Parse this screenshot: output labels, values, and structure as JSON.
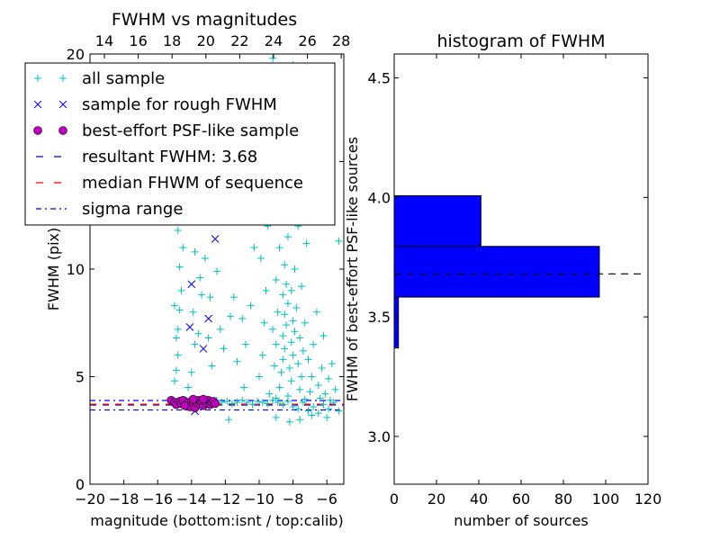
{
  "chart_data": [
    {
      "type": "scatter",
      "title": "FWHM vs magnitudes",
      "xlabel": "magnitude (bottom:isnt / top:calib)",
      "ylabel": "FWHM (pix)",
      "xlim": [
        -20,
        -5
      ],
      "ylim": [
        0,
        20
      ],
      "xticks": [
        -20,
        -18,
        -16,
        -14,
        -12,
        -10,
        -8,
        -6
      ],
      "xtick_labels": [
        "−20",
        "−18",
        "−16",
        "−14",
        "−12",
        "−10",
        "−8",
        "−6"
      ],
      "yticks": [
        0,
        5,
        10,
        15,
        20
      ],
      "ytick_labels": [
        "0",
        "5",
        "10",
        "15",
        "20"
      ],
      "top_axis": {
        "offset": 33.15,
        "ticks": [
          14,
          16,
          18,
          20,
          22,
          24,
          26,
          28
        ],
        "tick_labels": [
          "14",
          "16",
          "18",
          "20",
          "22",
          "24",
          "26",
          "28"
        ]
      },
      "legend": {
        "placement": "upper-left",
        "entries": [
          {
            "label": "all sample",
            "marker": "plus",
            "color": "#00bfbf"
          },
          {
            "label": "sample for rough FWHM",
            "marker": "x",
            "color": "#0000ff"
          },
          {
            "label": "best-effort PSF-like sample",
            "marker": "circle",
            "color": "#bf00bf"
          },
          {
            "label": "resultant FWHM: 3.68",
            "line": "dashed",
            "color": "#0000ff"
          },
          {
            "label": "median FHWM of sequence",
            "line": "dashed",
            "color": "#ff0000"
          },
          {
            "label": "sigma range",
            "line": "dashdot",
            "color": "#0000ff"
          }
        ]
      },
      "hlines": [
        {
          "name": "resultant",
          "y": 3.68,
          "color": "#0000ff",
          "style": "dashed"
        },
        {
          "name": "median",
          "y": 3.72,
          "color": "#ff0000",
          "style": "dashed"
        },
        {
          "name": "sigma-upper",
          "y": 3.89,
          "color": "#0000ff",
          "style": "dashdot"
        },
        {
          "name": "sigma-lower",
          "y": 3.45,
          "color": "#0000ff",
          "style": "dashdot"
        }
      ],
      "series": [
        {
          "name": "all sample",
          "color": "#00bfbf",
          "marker": "plus",
          "points": [
            [
              -15.2,
              3.8
            ],
            [
              -14.9,
              3.85
            ],
            [
              -14.6,
              3.75
            ],
            [
              -14.3,
              3.9
            ],
            [
              -14.0,
              3.8
            ],
            [
              -13.7,
              3.7
            ],
            [
              -13.4,
              3.85
            ],
            [
              -13.1,
              3.8
            ],
            [
              -12.8,
              3.75
            ],
            [
              -12.5,
              3.9
            ],
            [
              -12.2,
              3.8
            ],
            [
              -11.9,
              3.85
            ],
            [
              -11.6,
              3.75
            ],
            [
              -11.3,
              3.8
            ],
            [
              -11.0,
              3.9
            ],
            [
              -10.7,
              3.8
            ],
            [
              -10.4,
              3.7
            ],
            [
              -10.1,
              3.85
            ],
            [
              -9.8,
              3.8
            ],
            [
              -9.5,
              3.75
            ],
            [
              -9.2,
              3.9
            ],
            [
              -8.9,
              3.8
            ],
            [
              -8.6,
              3.7
            ],
            [
              -8.3,
              3.85
            ],
            [
              -8.0,
              3.6
            ],
            [
              -7.7,
              3.5
            ],
            [
              -7.4,
              3.8
            ],
            [
              -7.1,
              3.4
            ],
            [
              -6.8,
              3.6
            ],
            [
              -6.5,
              3.3
            ],
            [
              -6.2,
              3.7
            ],
            [
              -5.9,
              3.5
            ],
            [
              -5.6,
              3.8
            ],
            [
              -5.3,
              3.4
            ],
            [
              -11.8,
              3.0
            ],
            [
              -9.0,
              3.1
            ],
            [
              -7.6,
              3.0
            ],
            [
              -8.2,
              2.9
            ],
            [
              -6.9,
              3.2
            ],
            [
              -6.0,
              3.1
            ],
            [
              -15.0,
              4.8
            ],
            [
              -14.9,
              5.3
            ],
            [
              -14.8,
              6.0
            ],
            [
              -14.9,
              6.8
            ],
            [
              -14.8,
              7.2
            ],
            [
              -14.7,
              8.1
            ],
            [
              -15.0,
              8.3
            ],
            [
              -14.6,
              9.0
            ],
            [
              -14.7,
              10.1
            ],
            [
              -14.5,
              11.0
            ],
            [
              -14.8,
              11.8
            ],
            [
              -14.6,
              12.6
            ],
            [
              -14.8,
              14.0
            ],
            [
              -14.7,
              15.5
            ],
            [
              -14.5,
              17.0
            ],
            [
              -14.8,
              19.3
            ],
            [
              -14.2,
              4.5
            ],
            [
              -14.0,
              5.2
            ],
            [
              -13.8,
              6.5
            ],
            [
              -13.6,
              7.0
            ],
            [
              -13.9,
              8.0
            ],
            [
              -13.4,
              8.8
            ],
            [
              -13.5,
              9.6
            ],
            [
              -13.2,
              10.5
            ],
            [
              -13.8,
              10.8
            ],
            [
              -13.4,
              12.4
            ],
            [
              -12.9,
              8.7
            ],
            [
              -13.0,
              6.8
            ],
            [
              -12.8,
              5.5
            ],
            [
              -12.5,
              9.9
            ],
            [
              -12.3,
              7.2
            ],
            [
              -12.1,
              6.3
            ],
            [
              -11.7,
              7.8
            ],
            [
              -11.5,
              8.7
            ],
            [
              -11.3,
              5.7
            ],
            [
              -11.0,
              7.7
            ],
            [
              -10.8,
              6.5
            ],
            [
              -10.5,
              8.3
            ],
            [
              -10.3,
              11.0
            ],
            [
              -10.9,
              4.5
            ],
            [
              -10.0,
              5.0
            ],
            [
              -9.8,
              6.0
            ],
            [
              -9.7,
              7.5
            ],
            [
              -9.6,
              9.0
            ],
            [
              -9.9,
              10.5
            ],
            [
              -9.5,
              12.0
            ],
            [
              -9.8,
              13.5
            ],
            [
              -9.4,
              15.0
            ],
            [
              -9.6,
              16.8
            ],
            [
              -9.3,
              18.5
            ],
            [
              -9.2,
              19.8
            ],
            [
              -9.1,
              5.5
            ],
            [
              -9.0,
              6.5
            ],
            [
              -9.2,
              7.2
            ],
            [
              -8.9,
              8.0
            ],
            [
              -9.0,
              9.5
            ],
            [
              -8.8,
              11.0
            ],
            [
              -9.1,
              12.8
            ],
            [
              -8.7,
              14.2
            ],
            [
              -8.9,
              17.0
            ],
            [
              -8.8,
              4.5
            ],
            [
              -8.7,
              5.2
            ],
            [
              -8.6,
              5.8
            ],
            [
              -8.5,
              6.3
            ],
            [
              -8.6,
              6.9
            ],
            [
              -8.4,
              7.4
            ],
            [
              -8.5,
              7.9
            ],
            [
              -8.3,
              8.4
            ],
            [
              -8.6,
              8.8
            ],
            [
              -8.4,
              9.3
            ],
            [
              -8.5,
              10.2
            ],
            [
              -8.3,
              11.5
            ],
            [
              -8.6,
              13.0
            ],
            [
              -8.4,
              15.5
            ],
            [
              -8.2,
              18.0
            ],
            [
              -8.1,
              4.8
            ],
            [
              -8.2,
              5.4
            ],
            [
              -8.0,
              6.0
            ],
            [
              -8.1,
              6.6
            ],
            [
              -7.9,
              7.1
            ],
            [
              -8.0,
              7.6
            ],
            [
              -7.8,
              8.2
            ],
            [
              -8.1,
              9.0
            ],
            [
              -7.9,
              10.0
            ],
            [
              -7.7,
              12.0
            ],
            [
              -7.6,
              4.4
            ],
            [
              -7.5,
              5.0
            ],
            [
              -7.7,
              5.6
            ],
            [
              -7.4,
              6.2
            ],
            [
              -7.6,
              6.8
            ],
            [
              -7.3,
              7.5
            ],
            [
              -7.5,
              9.2
            ],
            [
              -7.2,
              11.2
            ],
            [
              -7.0,
              4.3
            ],
            [
              -6.9,
              5.0
            ],
            [
              -7.1,
              5.8
            ],
            [
              -6.8,
              6.5
            ],
            [
              -6.6,
              8.0
            ],
            [
              -6.5,
              4.6
            ],
            [
              -6.3,
              5.4
            ],
            [
              -6.1,
              4.2
            ],
            [
              -5.9,
              4.9
            ],
            [
              -5.7,
              5.6
            ],
            [
              -5.5,
              4.4
            ],
            [
              -5.3,
              11.3
            ],
            [
              -5.8,
              3.9
            ],
            [
              -6.9,
              14.0
            ],
            [
              -7.8,
              16.2
            ],
            [
              -8.0,
              19.5
            ],
            [
              -9.9,
              17.8
            ],
            [
              -6.2,
              6.9
            ],
            [
              -9.4,
              4.2
            ],
            [
              -9.0,
              4.0
            ],
            [
              -8.3,
              4.1
            ],
            [
              -7.3,
              3.95
            ],
            [
              -6.4,
              4.0
            ]
          ]
        },
        {
          "name": "sample for rough FWHM",
          "color": "#0000ff",
          "marker": "x",
          "points": [
            [
              -14.0,
              9.3
            ],
            [
              -14.1,
              7.3
            ],
            [
              -12.6,
              11.4
            ],
            [
              -13.0,
              7.7
            ],
            [
              -13.3,
              6.3
            ],
            [
              -13.8,
              3.4
            ],
            [
              -14.4,
              3.8
            ],
            [
              -13.5,
              3.7
            ]
          ]
        },
        {
          "name": "best-effort PSF-like sample",
          "color": "#bf00bf",
          "marker": "circle",
          "points": [
            [
              -15.2,
              3.9
            ],
            [
              -15.0,
              3.8
            ],
            [
              -14.9,
              3.7
            ],
            [
              -14.7,
              3.85
            ],
            [
              -14.6,
              3.75
            ],
            [
              -14.5,
              3.9
            ],
            [
              -14.3,
              3.7
            ],
            [
              -14.2,
              3.8
            ],
            [
              -14.1,
              3.6
            ],
            [
              -14.0,
              3.85
            ],
            [
              -13.9,
              3.75
            ],
            [
              -13.8,
              3.55
            ],
            [
              -13.7,
              3.8
            ],
            [
              -13.6,
              3.9
            ],
            [
              -13.5,
              3.7
            ],
            [
              -13.4,
              3.8
            ],
            [
              -13.3,
              3.65
            ],
            [
              -13.2,
              3.85
            ],
            [
              -13.1,
              3.75
            ],
            [
              -13.0,
              3.9
            ],
            [
              -12.9,
              3.7
            ],
            [
              -12.8,
              3.8
            ],
            [
              -12.7,
              3.85
            ],
            [
              -12.6,
              3.75
            ],
            [
              -13.9,
              3.95
            ],
            [
              -13.3,
              3.95
            ],
            [
              -14.4,
              3.65
            ]
          ]
        }
      ]
    },
    {
      "type": "bar",
      "orientation": "horizontal",
      "title": "histogram of FWHM",
      "xlabel": "number of sources",
      "ylabel": "FWHM of best-effort PSF-like sources",
      "xlim": [
        0,
        120
      ],
      "ylim": [
        2.8,
        4.6
      ],
      "xticks": [
        0,
        20,
        40,
        60,
        80,
        100,
        120
      ],
      "xtick_labels": [
        "0",
        "20",
        "40",
        "60",
        "80",
        "100",
        "120"
      ],
      "yticks": [
        3.0,
        3.5,
        4.0,
        4.5
      ],
      "ytick_labels": [
        "3.0",
        "3.5",
        "4.0",
        "4.5"
      ],
      "bin_edges": [
        3.37,
        3.583,
        3.795,
        4.007
      ],
      "counts": [
        2,
        97,
        41
      ],
      "bar_color": "#0000ff",
      "hline": {
        "y": 3.68,
        "color": "#000000",
        "style": "dashed",
        "x_range": [
          0,
          118
        ]
      }
    }
  ]
}
